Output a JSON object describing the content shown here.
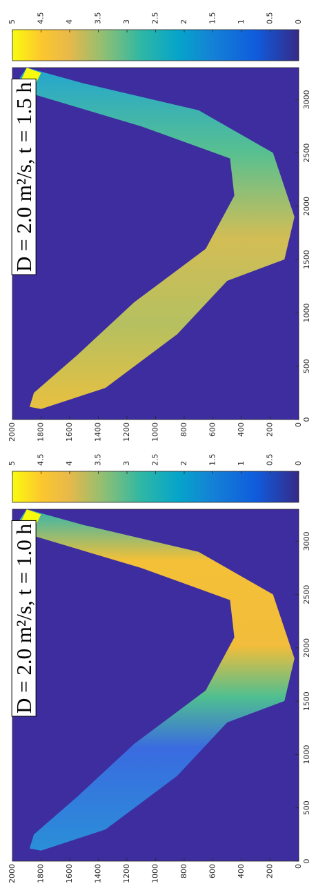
{
  "chart_data": [
    {
      "type": "heatmap",
      "annotation": "D = 2.0 m²/s, t = 1.0 h",
      "xlim": [
        0,
        3300
      ],
      "xticks": [
        0,
        500,
        1000,
        1500,
        2000,
        2500,
        3000
      ],
      "ylim": [
        0,
        2000
      ],
      "yticks": [
        0,
        200,
        400,
        600,
        800,
        1000,
        1200,
        1400,
        1600,
        1800,
        2000
      ],
      "clim": [
        0,
        5
      ],
      "cticks": [
        0,
        0.5,
        1,
        1.5,
        2,
        2.5,
        3,
        3.5,
        4,
        4.5,
        5
      ]
    },
    {
      "type": "heatmap",
      "annotation": "D = 2.0 m²/s, t = 1.5 h",
      "xlim": [
        0,
        3300
      ],
      "xticks": [
        0,
        500,
        1000,
        1500,
        2000,
        2500,
        3000
      ],
      "ylim": [
        0,
        2000
      ],
      "yticks": [
        0,
        200,
        400,
        600,
        800,
        1000,
        1200,
        1400,
        1600,
        1800,
        2000
      ],
      "clim": [
        0,
        5
      ],
      "cticks": [
        0,
        0.5,
        1,
        1.5,
        2,
        2.5,
        3,
        3.5,
        4,
        4.5,
        5
      ]
    }
  ]
}
